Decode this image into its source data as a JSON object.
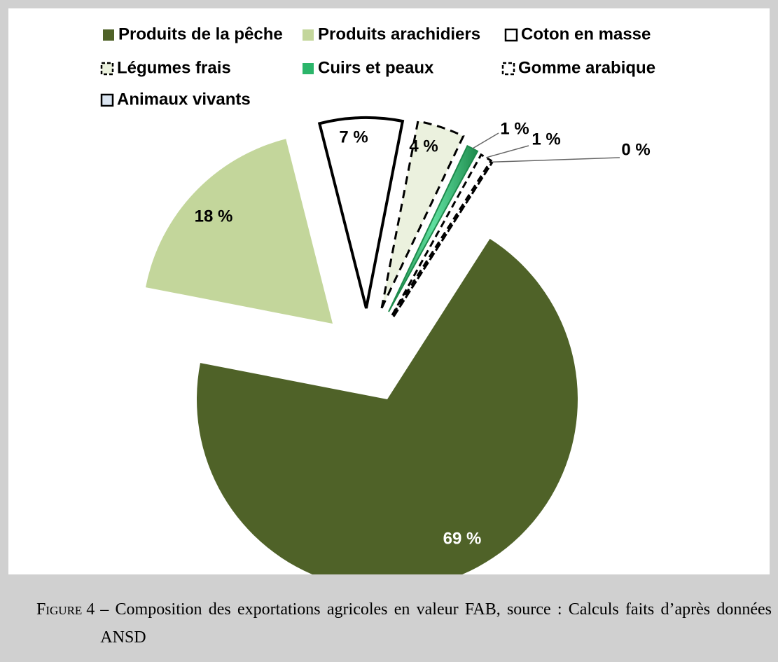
{
  "chart_data": {
    "type": "pie",
    "categories": [
      "Produits de la pêche",
      "Produits arachidiers",
      "Coton en masse",
      "Légumes frais",
      "Cuirs et peaux",
      "Gomme arabique",
      "Animaux vivants"
    ],
    "values": [
      69,
      18,
      7,
      4,
      1,
      1,
      0
    ],
    "value_labels": [
      "69 %",
      "18 %",
      "7 %",
      "4 %",
      "1 %",
      "1 %",
      "0 %"
    ],
    "colors": [
      "#4f6228",
      "#c3d69b",
      "#ffffff",
      "#ebf1de",
      "#2bb56a",
      "#ffffff",
      "#dbe5f1"
    ]
  },
  "caption": {
    "label": "Figure 4",
    "text": "– Composition des exportations agricoles en valeur FAB, source : Calculs faits d’après données ANSD"
  }
}
